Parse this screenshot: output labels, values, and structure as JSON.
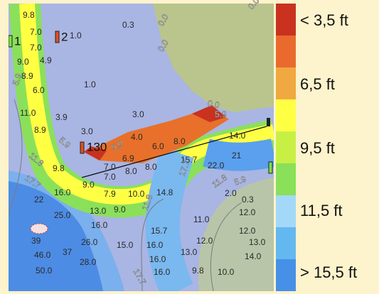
{
  "soundings": [
    "9.8",
    "0.3",
    "7.0",
    "1.0",
    "7.0",
    "4.9",
    "9.0",
    "8.9",
    "1.0",
    "6.0",
    "11.0",
    "3.9",
    "3.0",
    "8.9",
    "3.0",
    "4.0",
    "6.0",
    "8.0",
    "6.9",
    "9.8",
    "7.0",
    "8.0",
    "8.0",
    "15.7",
    "22.0",
    "21",
    "14.0",
    "9.0",
    "7.0",
    "7.9",
    "10.0",
    "14.8",
    "2.0",
    "0.3",
    "22",
    "16.0",
    "25.0",
    "13.0",
    "9.0",
    "11.0",
    "12.0",
    "16.0",
    "15.7",
    "12.0",
    "13.0",
    "39",
    "26.0",
    "15.0",
    "16.0",
    "12.0",
    "14.0",
    "46.0",
    "37",
    "28.0",
    "16.0",
    "13.0",
    "50.0",
    "16.0",
    "9.8",
    "10.0"
  ],
  "contour_labels": [
    "5.9",
    "0.0",
    "0.0",
    "0.0",
    "5.9",
    "11.8",
    "5.9",
    "17.7",
    "11.8",
    "11.8",
    "5.9",
    "17.7",
    "17.7",
    "5.9",
    "0.0"
  ],
  "markers": [
    "1",
    "2",
    "130"
  ],
  "legend": [
    "< 3,5 ft",
    "6,5 ft",
    "9,5 ft",
    "11,5 ft",
    "> 15,5 ft"
  ]
}
